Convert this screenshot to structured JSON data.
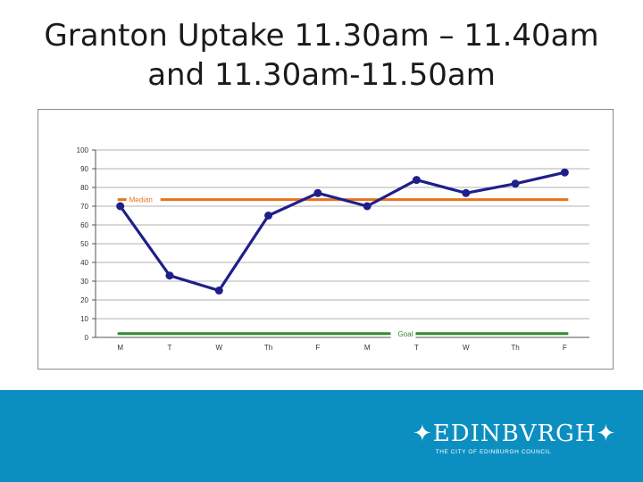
{
  "slide": {
    "title_line1": "Granton Uptake 11.30am – 11.40am",
    "title_line2": "and 11.30am-11.50am"
  },
  "logo": {
    "word": "EDINBVRGH",
    "subtitle": "THE CITY OF EDINBURGH COUNCIL"
  },
  "chart_data": {
    "type": "line",
    "title": "",
    "xlabel": "",
    "ylabel": "",
    "categories": [
      "M",
      "T",
      "W",
      "Th",
      "F",
      "M",
      "T",
      "W",
      "Th",
      "F"
    ],
    "series": [
      {
        "values": [
          70,
          33,
          25,
          65,
          77,
          70,
          84,
          77,
          82,
          88
        ],
        "color": "#1f1f8a"
      }
    ],
    "reference_lines": [
      {
        "label": "Median",
        "value": 73.5,
        "color": "#e8731c"
      },
      {
        "label": "Goal",
        "value": 2,
        "color": "#2e8b2e"
      }
    ],
    "yticks": [
      0,
      10,
      20,
      30,
      40,
      50,
      60,
      70,
      80,
      90,
      100
    ],
    "ylim": [
      0,
      100
    ],
    "grid": true,
    "legend": "none"
  }
}
